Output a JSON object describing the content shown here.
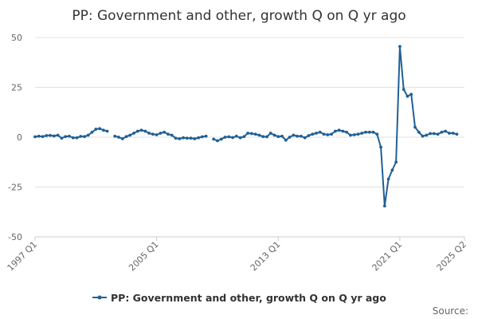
{
  "chart_data": {
    "type": "line",
    "title": "PP: Government and other, growth Q on Q yr ago",
    "xlabel": "",
    "ylabel": "",
    "ylim": [
      -50,
      50
    ],
    "y_ticks": [
      50,
      25,
      0,
      -25,
      -50
    ],
    "x_ticks": [
      "1997 Q1",
      "2005 Q1",
      "2013 Q1",
      "2021 Q1",
      "2025 Q2"
    ],
    "grid": true,
    "legend_position": "bottom",
    "series_color": "#206095",
    "series": [
      {
        "name": "PP: Government and other, growth Q on Q yr ago",
        "x_start": "1997 Q1",
        "values": [
          0.2,
          0.5,
          0.3,
          0.8,
          0.9,
          0.6,
          1.0,
          -0.5,
          0.3,
          0.5,
          -0.3,
          -0.3,
          0.4,
          0.3,
          1.0,
          2.5,
          4.0,
          4.3,
          3.5,
          3.0,
          null,
          0.5,
          0.0,
          -0.8,
          0.3,
          1.0,
          2.0,
          3.0,
          3.5,
          3.0,
          2.0,
          1.5,
          1.2,
          2.0,
          2.5,
          1.5,
          1.0,
          -0.5,
          -0.8,
          -0.3,
          -0.5,
          -0.5,
          -0.8,
          -0.3,
          0.2,
          0.5,
          null,
          -1.0,
          -1.8,
          -1.0,
          0.0,
          0.2,
          -0.2,
          0.5,
          -0.3,
          0.3,
          2.0,
          1.8,
          1.5,
          1.0,
          0.3,
          0.2,
          2.0,
          1.0,
          0.3,
          0.5,
          -1.5,
          0.0,
          1.0,
          0.5,
          0.5,
          -0.3,
          0.8,
          1.5,
          2.0,
          2.5,
          1.5,
          1.2,
          1.5,
          3.0,
          3.5,
          3.0,
          2.5,
          1.0,
          1.2,
          1.5,
          2.0,
          2.5,
          2.5,
          2.5,
          1.5,
          -5.0,
          -34.5,
          -21.0,
          -16.5,
          -12.5,
          45.5,
          24.0,
          20.5,
          21.5,
          5.0,
          2.5,
          0.5,
          1.0,
          1.8,
          1.8,
          1.5,
          2.5,
          3.0,
          2.0,
          2.0,
          1.5
        ]
      }
    ]
  },
  "source_label": "Source:"
}
